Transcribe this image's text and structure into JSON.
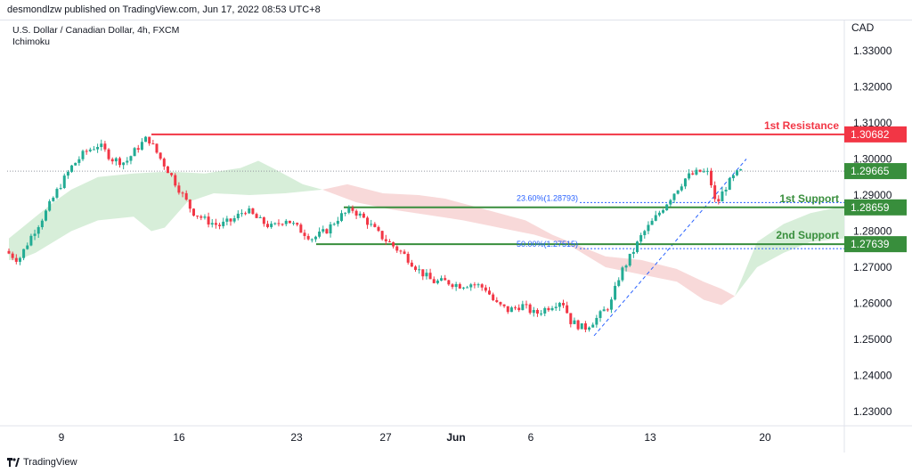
{
  "header": {
    "publisher_line": "desmondlzw published on TradingView.com, Jun 17, 2022 08:53 UTC+8"
  },
  "legend": {
    "symbol_line": "U.S. Dollar / Canadian Dollar, 4h, FXCM",
    "indicator": "Ichimoku"
  },
  "footer": {
    "brand": "TradingView",
    "logo": "tradingview-logo-icon"
  },
  "chart_data": {
    "type": "candlestick",
    "y_axis": {
      "currency": "CAD",
      "ylim": [
        1.221,
        1.339
      ],
      "ticks": [
        "1.33000",
        "1.32000",
        "1.31000",
        "1.30000",
        "1.29000",
        "1.28000",
        "1.27000",
        "1.26000",
        "1.25000",
        "1.24000",
        "1.23000"
      ]
    },
    "x_axis": {
      "tick_labels": [
        "9",
        "16",
        "23",
        "27",
        "Jun",
        "6",
        "13",
        "20"
      ]
    },
    "colors": {
      "up": "#22ab94",
      "down": "#f23645",
      "resistance": "#f23645",
      "support": "#388e3c",
      "fib": "#2962ff",
      "cloud_bull": "#d7eed9",
      "cloud_bear": "#f8d9d9"
    },
    "levels": [
      {
        "label": "1st Resistance",
        "value": 1.30682,
        "value_text": "1.30682",
        "kind": "resistance"
      },
      {
        "label": "1st Support",
        "value": 1.28659,
        "value_text": "1.28659",
        "kind": "support"
      },
      {
        "label": "2nd Support",
        "value": 1.27639,
        "value_text": "1.27639",
        "kind": "support"
      }
    ],
    "last_price": {
      "value": 1.29665,
      "value_text": "1.29665"
    },
    "fib_levels": [
      {
        "label": "23.60%(1.28793)",
        "value": 1.28793
      },
      {
        "label": "50.00%(1.27515)",
        "value": 1.27515
      }
    ],
    "fib_anchor": {
      "low": 1.251,
      "high": 1.3
    }
  }
}
